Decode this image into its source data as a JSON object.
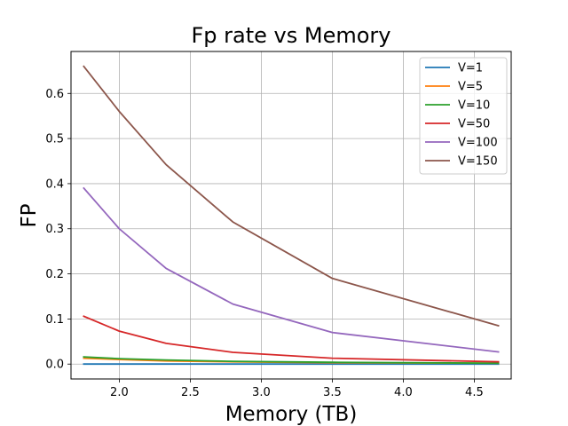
{
  "chart_data": {
    "type": "line",
    "title": "Fp rate vs Memory",
    "xlabel": "Memory (TB)",
    "ylabel": "FP",
    "xlim": [
      1.66,
      4.76
    ],
    "ylim": [
      -0.033,
      0.693
    ],
    "xticks": [
      2.0,
      2.5,
      3.0,
      3.5,
      4.0,
      4.5
    ],
    "xtick_labels": [
      "2.0",
      "2.5",
      "3.0",
      "3.5",
      "4.0",
      "4.5"
    ],
    "yticks": [
      0.0,
      0.1,
      0.2,
      0.3,
      0.4,
      0.5,
      0.6
    ],
    "ytick_labels": [
      "0.0",
      "0.1",
      "0.2",
      "0.3",
      "0.4",
      "0.5",
      "0.6"
    ],
    "grid": true,
    "legend_position": "top-right",
    "x": [
      1.75,
      2.0,
      2.33,
      2.8,
      3.5,
      4.67
    ],
    "series": [
      {
        "name": "V=1",
        "color": "#1f77b4",
        "values": [
          0.0001,
          0.0001,
          0.0001,
          0.0001,
          0.0001,
          0.0001
        ]
      },
      {
        "name": "V=5",
        "color": "#ff7f0e",
        "values": [
          0.013,
          0.01,
          0.007,
          0.005,
          0.003,
          0.002
        ]
      },
      {
        "name": "V=10",
        "color": "#2ca02c",
        "values": [
          0.016,
          0.012,
          0.009,
          0.006,
          0.004,
          0.002
        ]
      },
      {
        "name": "V=50",
        "color": "#d62728",
        "values": [
          0.106,
          0.073,
          0.046,
          0.026,
          0.013,
          0.005
        ]
      },
      {
        "name": "V=100",
        "color": "#9467bd",
        "values": [
          0.39,
          0.3,
          0.212,
          0.133,
          0.07,
          0.027
        ]
      },
      {
        "name": "V=150",
        "color": "#8c564b",
        "values": [
          0.66,
          0.56,
          0.442,
          0.315,
          0.19,
          0.085
        ]
      }
    ]
  }
}
